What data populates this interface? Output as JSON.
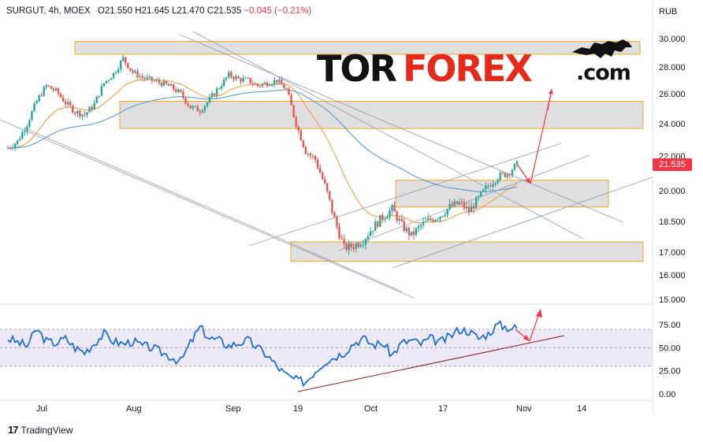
{
  "header": {
    "symbol": "SURGUT, 4h, MOEX",
    "open_label": "O",
    "open": "21.550",
    "high_label": "H",
    "high": "21.645",
    "low_label": "L",
    "low": "21.470",
    "close_label": "C",
    "close": "21.535",
    "change": "−0.045 (−0.21%)"
  },
  "currency": "RUB",
  "last_price_label": "21.535",
  "logo": {
    "part1": "TOR",
    "part2": "FOREX",
    "part3": ".com"
  },
  "footer": {
    "brand": "TradingView"
  },
  "colors": {
    "up": "#26a69a",
    "down": "#ef5350",
    "ema_fast": "#f5a045",
    "ema_slow": "#5b9bd5",
    "rsi": "#1e6fd9",
    "zone_border": "#f5a623",
    "arrow": "#f23645"
  },
  "chart_data": {
    "type": "candlestick",
    "price_axis": {
      "ticks": [
        "30.000",
        "28.000",
        "26.000",
        "24.000",
        "22.000",
        "20.000",
        "18.500",
        "17.000",
        "16.000",
        "15.000"
      ]
    },
    "rsi_axis": {
      "ticks": [
        "75.00",
        "50.00",
        "25.00",
        "0.00"
      ],
      "band": [
        30,
        70
      ]
    },
    "x_labels": [
      "Jul",
      "Aug",
      "Sep",
      "19",
      "Oct",
      "17",
      "Nov",
      "14"
    ],
    "price_path": [
      22.5,
      22.9,
      24.0,
      25.5,
      26.6,
      26.2,
      25.4,
      24.8,
      24.6,
      25.3,
      26.8,
      27.5,
      28.6,
      27.6,
      27.2,
      27.0,
      26.8,
      26.5,
      26.0,
      25.1,
      24.9,
      25.6,
      26.5,
      27.4,
      27.1,
      27.0,
      26.6,
      26.8,
      27.0,
      26.3,
      24.0,
      22.3,
      21.8,
      20.3,
      18.6,
      17.2,
      17.3,
      17.6,
      18.2,
      18.7,
      19.1,
      18.3,
      17.8,
      18.3,
      18.6,
      18.8,
      19.2,
      19.4,
      19.0,
      19.6,
      20.3,
      20.8,
      21.0,
      21.5
    ],
    "zones": [
      [
        28.9,
        29.8
      ],
      [
        23.7,
        25.5
      ],
      [
        19.2,
        20.6
      ],
      [
        16.6,
        17.5
      ]
    ],
    "rsi_path": [
      60,
      56,
      52,
      70,
      57,
      55,
      60,
      50,
      45,
      55,
      65,
      57,
      54,
      57,
      52,
      50,
      45,
      40,
      35,
      55,
      72,
      60,
      58,
      52,
      55,
      58,
      50,
      42,
      30,
      20,
      15,
      13,
      25,
      35,
      40,
      45,
      55,
      60,
      53,
      55,
      42,
      55,
      58,
      54,
      60,
      56,
      62,
      70,
      68,
      60,
      65,
      75,
      72,
      71
    ]
  }
}
